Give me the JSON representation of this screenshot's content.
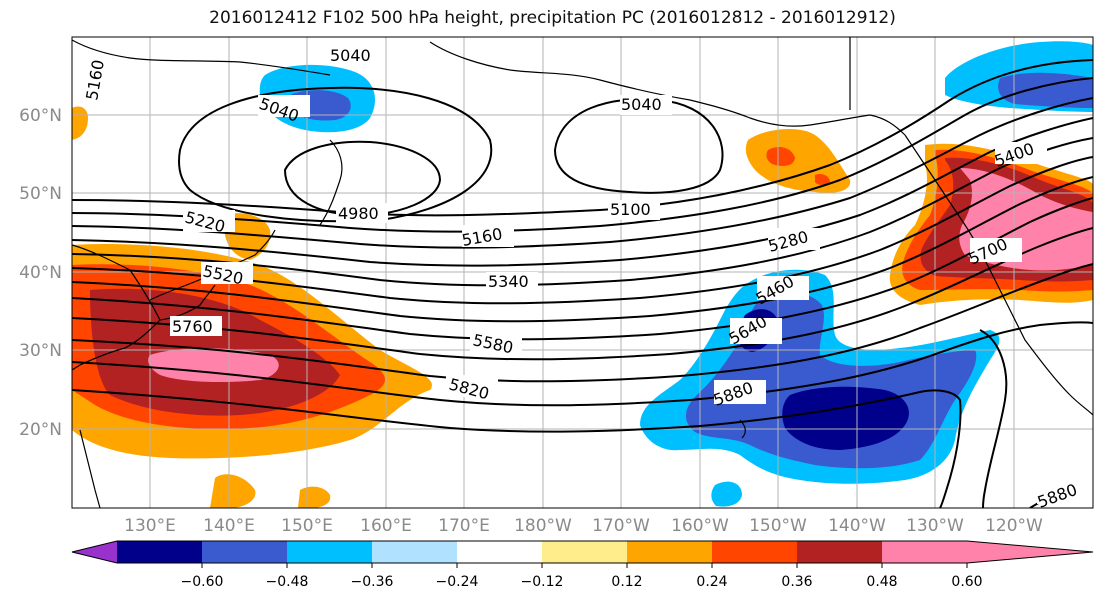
{
  "title": "2016012412 F102 500 hPa height, precipitation PC (2016012812 - 2016012912)",
  "map": {
    "lat_labels": [
      "60°N",
      "50°N",
      "40°N",
      "30°N",
      "20°N"
    ],
    "lon_labels": [
      "130°E",
      "140°E",
      "150°E",
      "160°E",
      "170°E",
      "180°W",
      "170°W",
      "160°W",
      "150°W",
      "140°W",
      "130°W",
      "120°W"
    ],
    "contour_labels": [
      "5160",
      "5040",
      "5040",
      "5040",
      "4980",
      "5220",
      "5100",
      "5160",
      "5280",
      "5400",
      "5520",
      "5340",
      "5460",
      "5700",
      "5760",
      "5580",
      "5640",
      "5820",
      "5880",
      "5880"
    ]
  },
  "colorbar": {
    "ticks": [
      "−0.60",
      "−0.48",
      "−0.36",
      "−0.24",
      "−0.12",
      "0.12",
      "0.24",
      "0.36",
      "0.48",
      "0.60"
    ],
    "colors": [
      "#9932cc",
      "#00008b",
      "#3a5bd0",
      "#00bfff",
      "#b0e2ff",
      "#ffffff",
      "#ffec8b",
      "#ffa500",
      "#ff4500",
      "#b22222",
      "#ff82ab"
    ]
  }
}
